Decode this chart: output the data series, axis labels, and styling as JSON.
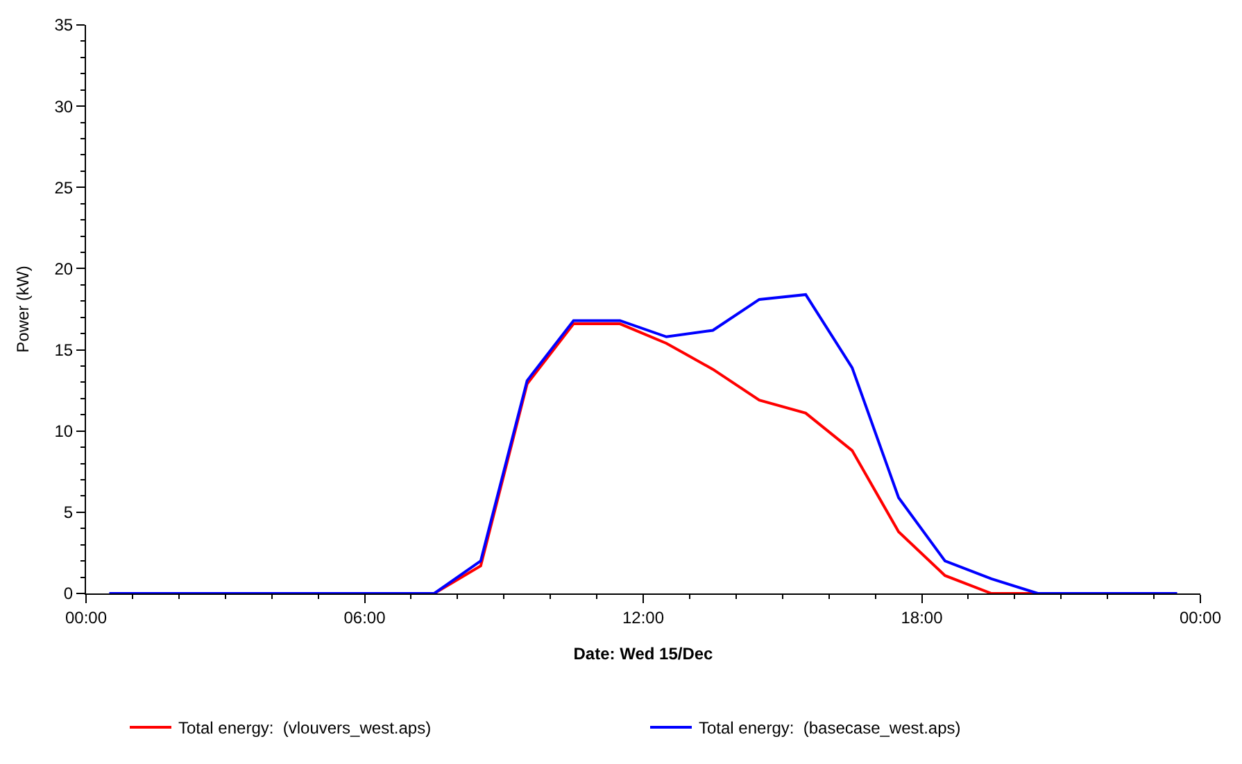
{
  "chart_data": {
    "type": "line",
    "xlabel": "Date: Wed 15/Dec",
    "ylabel": "Power (kW)",
    "x": [
      0.5,
      1.5,
      2.5,
      3.5,
      4.5,
      5.5,
      6.5,
      7.5,
      8.5,
      9.5,
      10.5,
      11.5,
      12.5,
      13.5,
      14.5,
      15.5,
      16.5,
      17.5,
      18.5,
      19.5,
      20.5,
      21.5,
      22.5,
      23.5
    ],
    "series": [
      {
        "name": "Total energy:  (vlouvers_west.aps)",
        "color": "#ff0000",
        "values": [
          null,
          null,
          null,
          null,
          null,
          null,
          0,
          0,
          1.7,
          12.9,
          16.6,
          16.6,
          15.4,
          13.8,
          11.9,
          11.1,
          8.8,
          3.8,
          1.1,
          0,
          0,
          0,
          null,
          null
        ]
      },
      {
        "name": "Total energy:  (basecase_west.aps)",
        "color": "#0000ff",
        "values": [
          0,
          0,
          0,
          0,
          0,
          0,
          0,
          0,
          2.0,
          13.1,
          16.8,
          16.8,
          15.8,
          16.2,
          18.1,
          18.4,
          13.9,
          5.9,
          2.0,
          0.9,
          0,
          0,
          0,
          0
        ]
      }
    ],
    "xlim": [
      0,
      24
    ],
    "xticks": [
      {
        "value": 0,
        "label": "00:00"
      },
      {
        "value": 6,
        "label": "06:00"
      },
      {
        "value": 12,
        "label": "12:00"
      },
      {
        "value": 18,
        "label": "18:00"
      },
      {
        "value": 24,
        "label": "00:00"
      }
    ],
    "ylim": [
      0,
      35
    ],
    "yticks": [
      0,
      5,
      10,
      15,
      20,
      25,
      30,
      35
    ],
    "legend": "bottom",
    "marker": "none",
    "line_style": "solid"
  }
}
